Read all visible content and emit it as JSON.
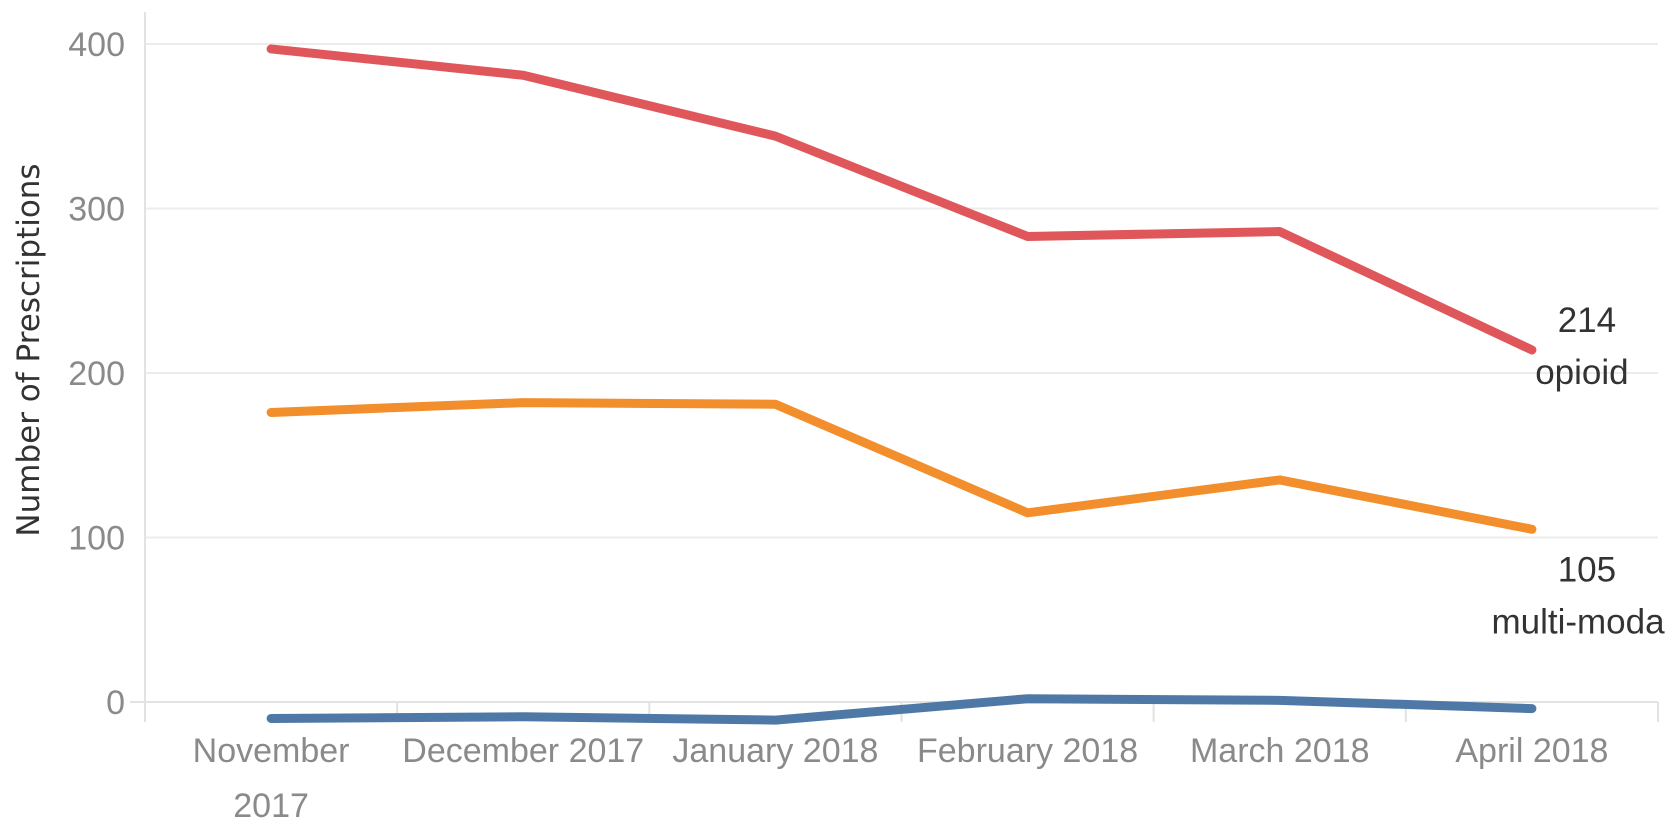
{
  "chart_data": {
    "type": "line",
    "ylabel": "Number of Prescriptions",
    "xlabel": "",
    "categories": [
      [
        "November",
        "2017"
      ],
      [
        "December 2017"
      ],
      [
        "January 2018"
      ],
      [
        "February 2018"
      ],
      [
        "March 2018"
      ],
      [
        "April 2018"
      ]
    ],
    "ylim": [
      -20,
      420
    ],
    "yticks": [
      0,
      100,
      200,
      300,
      400
    ],
    "grid": true,
    "series": [
      {
        "name": "opioid",
        "color": "#e0575b",
        "values": [
          397,
          381,
          344,
          283,
          286,
          214
        ],
        "end_label": [
          "214",
          "opioid"
        ]
      },
      {
        "name": "multi-modal",
        "color": "#f28e2b",
        "values": [
          176,
          182,
          181,
          115,
          135,
          105
        ],
        "end_label": [
          "105",
          "multi-modal"
        ]
      },
      {
        "color": "#4e79a7",
        "values": [
          -10,
          -9,
          -11,
          2,
          1,
          -4
        ]
      }
    ]
  }
}
